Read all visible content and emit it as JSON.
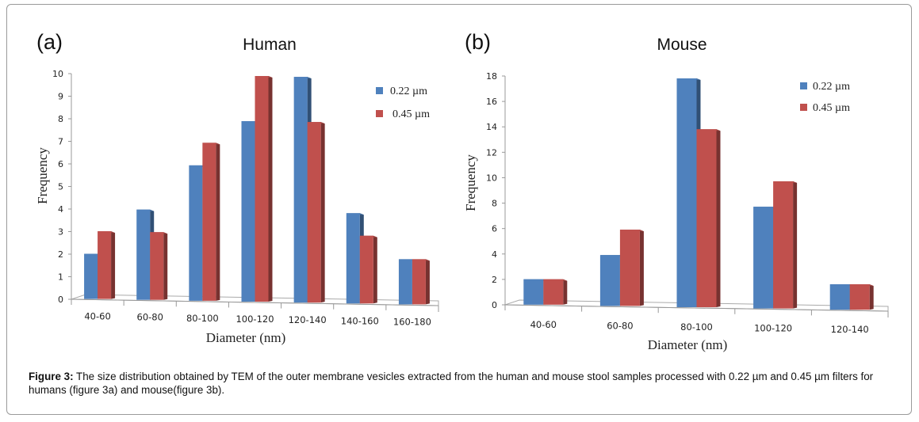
{
  "caption": {
    "label": "Figure 3:",
    "text": " The size distribution obtained by TEM of the outer membrane vesicles extracted from the human and mouse stool samples processed with 0.22  µm and 0.45 µm filters for humans (figure 3a) and mouse(figure 3b)."
  },
  "colors": {
    "series1": "#4f81bd",
    "series2": "#c0504d"
  },
  "chart_data": [
    {
      "type": "bar",
      "panel": "(a)",
      "title": "Human",
      "xlabel": "Diameter (nm)",
      "ylabel": "Frequency",
      "categories": [
        "40-60",
        "60-80",
        "80-100",
        "100-120",
        "120-140",
        "140-160",
        "160-180"
      ],
      "yticks": [
        "0",
        "1",
        "2",
        "3",
        "4",
        "5",
        "6",
        "7",
        "8",
        "9",
        "10"
      ],
      "ylim": [
        0,
        10
      ],
      "legend_position": "top-right",
      "grid": false,
      "series": [
        {
          "name": "0.22 µm",
          "values": [
            2,
            4,
            6,
            8,
            10,
            4,
            2
          ]
        },
        {
          "name": "0.45 µm",
          "values": [
            3,
            3,
            7,
            10,
            8,
            3,
            2
          ]
        }
      ]
    },
    {
      "type": "bar",
      "panel": "(b)",
      "title": "Mouse",
      "xlabel": "Diameter (nm)",
      "ylabel": "Frequency",
      "categories": [
        "40-60",
        "60-80",
        "80-100",
        "100-120",
        "120-140"
      ],
      "yticks": [
        "0",
        "2",
        "4",
        "6",
        "8",
        "10",
        "12",
        "14",
        "16",
        "18"
      ],
      "ylim": [
        0,
        18
      ],
      "legend_position": "top-right",
      "grid": false,
      "series": [
        {
          "name": "0.22 µm",
          "values": [
            2,
            4,
            18,
            8,
            2
          ]
        },
        {
          "name": "0.45 µm",
          "values": [
            2,
            6,
            14,
            10,
            2
          ]
        }
      ]
    }
  ]
}
